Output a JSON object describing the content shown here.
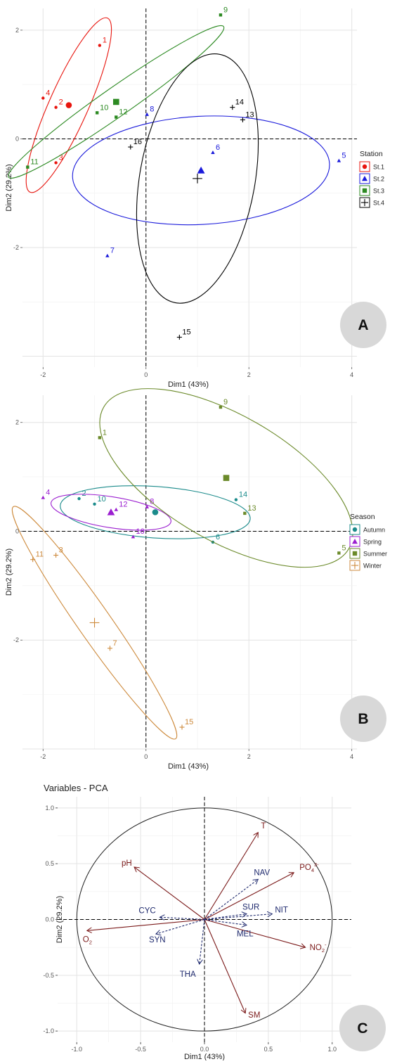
{
  "chart_data": [
    {
      "panel": "A",
      "type": "scatter",
      "xlabel": "Dim1 (43%)",
      "ylabel": "Dim2 (29.2%)",
      "xlim": [
        -2.4,
        4.1
      ],
      "ylim": [
        -4.2,
        2.4
      ],
      "xticks": [
        -2,
        0,
        2,
        4
      ],
      "yticks": [
        -2,
        0,
        2
      ],
      "grid": true,
      "legend_title": "Station",
      "legend_position": "right",
      "series": [
        {
          "name": "St.1",
          "color": "#e8140d",
          "shape": "circle",
          "points": [
            {
              "label": "1",
              "x": -0.9,
              "y": 1.72
            },
            {
              "label": "2",
              "x": -1.75,
              "y": 0.58
            },
            {
              "label": "3",
              "x": -1.75,
              "y": -0.44
            },
            {
              "label": "4",
              "x": -2.0,
              "y": 0.75
            }
          ],
          "centroid": {
            "x": -1.5,
            "y": 0.62
          },
          "ellipse": {
            "cx": -1.5,
            "cy": 0.62,
            "rx": 1.85,
            "ry": 0.38,
            "angle": 66
          }
        },
        {
          "name": "St.2",
          "color": "#1a1adb",
          "shape": "triangle",
          "points": [
            {
              "label": "5",
              "x": 3.75,
              "y": -0.4
            },
            {
              "label": "6",
              "x": 1.3,
              "y": -0.25
            },
            {
              "label": "7",
              "x": -0.75,
              "y": -2.15
            },
            {
              "label": "8",
              "x": 0.02,
              "y": 0.45
            }
          ],
          "centroid": {
            "x": 1.07,
            "y": -0.58
          },
          "ellipse": {
            "cx": 1.07,
            "cy": -0.58,
            "rx": 2.5,
            "ry": 1.05,
            "angle": 3
          }
        },
        {
          "name": "St.3",
          "color": "#2c8a22",
          "shape": "square",
          "points": [
            {
              "label": "9",
              "x": 1.45,
              "y": 2.28
            },
            {
              "label": "10",
              "x": -0.95,
              "y": 0.48
            },
            {
              "label": "11",
              "x": -2.3,
              "y": -0.52
            },
            {
              "label": "12",
              "x": -0.58,
              "y": 0.4
            }
          ],
          "centroid": {
            "x": -0.58,
            "y": 0.68
          },
          "ellipse": {
            "cx": -0.58,
            "cy": 0.68,
            "rx": 2.55,
            "ry": 0.28,
            "angle": 35
          }
        },
        {
          "name": "St.4",
          "color": "#000000",
          "shape": "plus",
          "points": [
            {
              "label": "13",
              "x": 1.88,
              "y": 0.35
            },
            {
              "label": "14",
              "x": 1.68,
              "y": 0.58
            },
            {
              "label": "15",
              "x": 0.65,
              "y": -3.65
            },
            {
              "label": "16",
              "x": -0.3,
              "y": -0.15
            }
          ],
          "centroid": {
            "x": 1.0,
            "y": -0.73
          },
          "ellipse": {
            "cx": 1.0,
            "cy": -0.73,
            "rx": 2.45,
            "ry": 1.12,
            "angle": 80
          }
        }
      ],
      "badge": "A"
    },
    {
      "panel": "B",
      "type": "scatter",
      "xlabel": "Dim1 (43%)",
      "ylabel": "Dim2 (29.2%)",
      "xlim": [
        -2.4,
        4.1
      ],
      "ylim": [
        -4.0,
        2.5
      ],
      "xticks": [
        -2,
        0,
        2,
        4
      ],
      "yticks": [
        -2,
        0,
        2
      ],
      "grid": true,
      "legend_title": "Season",
      "legend_position": "right",
      "series": [
        {
          "name": "Autumn",
          "color": "#1b8b8b",
          "shape": "circle",
          "points": [
            {
              "label": "2",
              "x": -1.3,
              "y": 0.6
            },
            {
              "label": "6",
              "x": 1.3,
              "y": -0.2
            },
            {
              "label": "10",
              "x": -1.0,
              "y": 0.5
            },
            {
              "label": "14",
              "x": 1.75,
              "y": 0.58
            }
          ],
          "centroid": {
            "x": 0.18,
            "y": 0.35
          },
          "ellipse": {
            "cx": 0.18,
            "cy": 0.35,
            "rx": 1.85,
            "ry": 0.5,
            "angle": -4
          }
        },
        {
          "name": "Spring",
          "color": "#9b1fd0",
          "shape": "triangle",
          "points": [
            {
              "label": "4",
              "x": -2.0,
              "y": 0.62
            },
            {
              "label": "8",
              "x": 0.02,
              "y": 0.45
            },
            {
              "label": "12",
              "x": -0.58,
              "y": 0.4
            },
            {
              "label": "16",
              "x": -0.25,
              "y": -0.1
            }
          ],
          "centroid": {
            "x": -0.68,
            "y": 0.35
          },
          "ellipse": {
            "cx": -0.68,
            "cy": 0.35,
            "rx": 1.18,
            "ry": 0.3,
            "angle": -9
          }
        },
        {
          "name": "Summer",
          "color": "#6b8a2a",
          "shape": "square",
          "points": [
            {
              "label": "1",
              "x": -0.9,
              "y": 1.72
            },
            {
              "label": "5",
              "x": 3.75,
              "y": -0.4
            },
            {
              "label": "9",
              "x": 1.45,
              "y": 2.28
            },
            {
              "label": "13",
              "x": 1.92,
              "y": 0.33
            }
          ],
          "centroid": {
            "x": 1.56,
            "y": 0.98
          },
          "ellipse": {
            "cx": 1.56,
            "cy": 0.98,
            "rx": 2.75,
            "ry": 1.22,
            "angle": -30
          }
        },
        {
          "name": "Winter",
          "color": "#cd8a3c",
          "shape": "plus",
          "points": [
            {
              "label": "3",
              "x": -1.75,
              "y": -0.44
            },
            {
              "label": "7",
              "x": -0.7,
              "y": -2.15
            },
            {
              "label": "11",
              "x": -2.2,
              "y": -0.52
            },
            {
              "label": "15",
              "x": 0.7,
              "y": -3.6
            }
          ],
          "centroid": {
            "x": -1.0,
            "y": -1.68
          },
          "ellipse": {
            "cx": -1.0,
            "cy": -1.68,
            "rx": 2.75,
            "ry": 0.32,
            "angle": -55
          }
        }
      ],
      "badge": "B"
    },
    {
      "panel": "C",
      "type": "scatter",
      "title": "Variables - PCA",
      "xlabel": "Dim1 (43%)",
      "ylabel": "Dim2 (29.2%)",
      "xlim": [
        -1.15,
        1.15
      ],
      "ylim": [
        -1.1,
        1.1
      ],
      "xticks": [
        -1.0,
        -0.5,
        0.0,
        0.5,
        1.0
      ],
      "yticks": [
        -1.0,
        -0.5,
        0.0,
        0.5,
        1.0
      ],
      "grid": true,
      "unit_circle": true,
      "vectors": [
        {
          "label": "T",
          "sub": "",
          "sup": "",
          "x": 0.42,
          "y": 0.78,
          "color": "#7b1a1a",
          "style": "solid"
        },
        {
          "label": "PO",
          "sub": "4",
          "sup": "3-",
          "x": 0.7,
          "y": 0.42,
          "color": "#7b1a1a",
          "style": "solid"
        },
        {
          "label": "pH",
          "sub": "",
          "sup": "",
          "x": -0.55,
          "y": 0.47,
          "color": "#7b1a1a",
          "style": "solid"
        },
        {
          "label": "O",
          "sub": "2",
          "sup": "",
          "x": -0.92,
          "y": -0.1,
          "color": "#7b1a1a",
          "style": "solid"
        },
        {
          "label": "NO",
          "sub": "2",
          "sup": "-",
          "x": 0.79,
          "y": -0.25,
          "color": "#7b1a1a",
          "style": "solid"
        },
        {
          "label": "SM",
          "sub": "",
          "sup": "",
          "x": 0.32,
          "y": -0.84,
          "color": "#7b1a1a",
          "style": "solid"
        },
        {
          "label": "NAV",
          "sub": "",
          "sup": "",
          "x": 0.42,
          "y": 0.36,
          "color": "#1f2a6e",
          "style": "dashed"
        },
        {
          "label": "NIT",
          "sub": "",
          "sup": "",
          "x": 0.53,
          "y": 0.05,
          "color": "#1f2a6e",
          "style": "dashed"
        },
        {
          "label": "SUR",
          "sub": "",
          "sup": "",
          "x": 0.33,
          "y": 0.05,
          "color": "#1f2a6e",
          "style": "dashed"
        },
        {
          "label": "MEL",
          "sub": "",
          "sup": "",
          "x": 0.33,
          "y": -0.05,
          "color": "#1f2a6e",
          "style": "dashed"
        },
        {
          "label": "CYC",
          "sub": "",
          "sup": "",
          "x": -0.35,
          "y": 0.02,
          "color": "#1f2a6e",
          "style": "dashed"
        },
        {
          "label": "SYN",
          "sub": "",
          "sup": "",
          "x": -0.38,
          "y": -0.13,
          "color": "#1f2a6e",
          "style": "dashed"
        },
        {
          "label": "THA",
          "sub": "",
          "sup": "",
          "x": -0.04,
          "y": -0.4,
          "color": "#1f2a6e",
          "style": "dashed"
        }
      ],
      "badge": "C"
    }
  ]
}
